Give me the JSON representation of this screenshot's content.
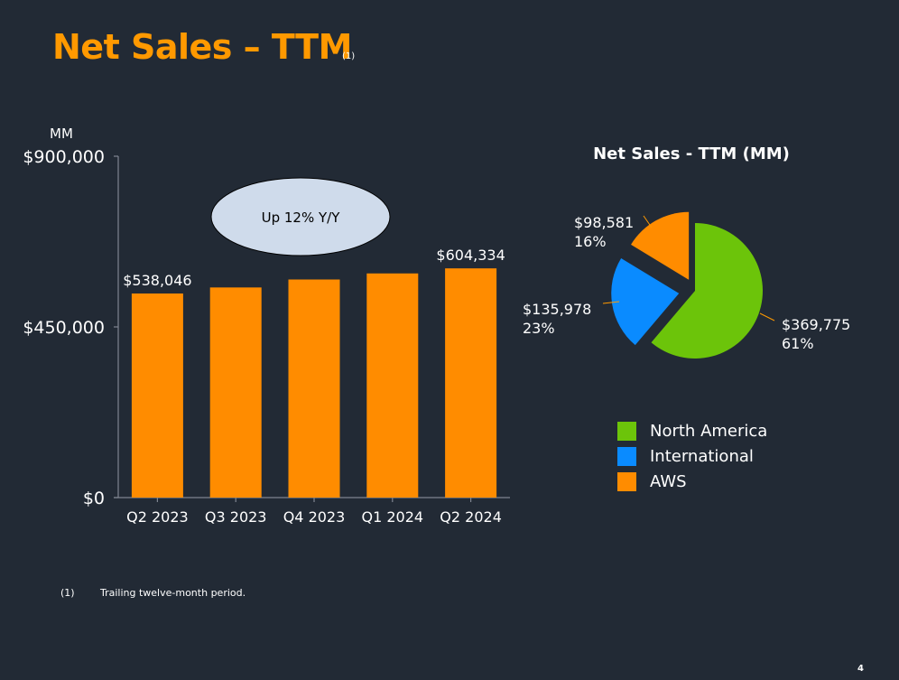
{
  "header": {
    "title": "Net Sales – TTM",
    "title_note": "(1)"
  },
  "footnote": {
    "number": "(1)",
    "text": "Trailing twelve-month period."
  },
  "page_number": "4",
  "colors": {
    "background": "#222a35",
    "accent": "#ff9900",
    "north_america": "#6cc40a",
    "international": "#0a8bff",
    "aws": "#ff8c00",
    "callout_fill": "#cfdbeb"
  },
  "chart_data": [
    {
      "type": "bar",
      "title": "",
      "ylabel": "MM",
      "xlabel": "",
      "categories": [
        "Q2 2023",
        "Q3 2023",
        "Q4 2023",
        "Q1 2024",
        "Q2 2024"
      ],
      "values": [
        538046,
        554000,
        575000,
        591000,
        604334
      ],
      "data_labels": [
        "$538,046",
        "",
        "",
        "",
        "$604,334"
      ],
      "ylim": [
        0,
        900000
      ],
      "yticks": [
        0,
        450000,
        900000
      ],
      "ytick_labels": [
        "$0",
        "$450,000",
        "$900,000"
      ],
      "grid": false,
      "annotation": "Up 12% Y/Y",
      "bar_color": "#ff8c00"
    },
    {
      "type": "pie",
      "title": "Net Sales - TTM (MM)",
      "slices": [
        {
          "name": "North America",
          "value": 369775,
          "label": "$369,775",
          "percent_label": "61%",
          "color": "#6cc40a"
        },
        {
          "name": "International",
          "value": 135978,
          "label": "$135,978",
          "percent_label": "23%",
          "color": "#0a8bff"
        },
        {
          "name": "AWS",
          "value": 98581,
          "label": "$98,581",
          "percent_label": "16%",
          "color": "#ff8c00"
        }
      ],
      "legend": [
        "North America",
        "International",
        "AWS"
      ],
      "legend_position": "bottom"
    }
  ]
}
